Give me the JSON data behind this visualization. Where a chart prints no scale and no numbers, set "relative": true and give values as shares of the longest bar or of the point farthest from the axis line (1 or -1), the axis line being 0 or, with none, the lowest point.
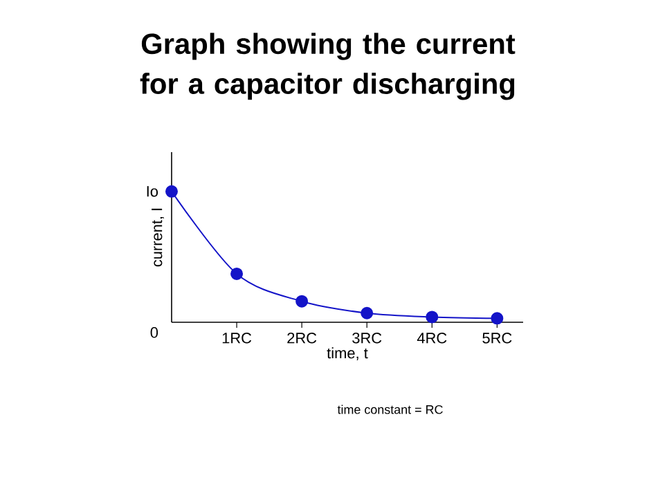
{
  "chart_data": {
    "type": "line",
    "title": "Graph showing the current for a capacitor discharging",
    "xlabel": "time, t",
    "ylabel": "current, I",
    "annotations": [
      "time constant = RC",
      {
        "text": "Io",
        "x": 0,
        "y": 1
      },
      "0"
    ],
    "relative": true,
    "x": [
      0,
      1,
      2,
      3,
      4,
      5
    ],
    "series": [
      {
        "color": "#1414c8",
        "values": [
          1,
          0.37,
          0.16,
          0.07,
          0.04,
          0.03
        ]
      }
    ],
    "xlim": [
      0,
      5.4
    ],
    "xticks": [
      {
        "value": 1,
        "label": "1RC"
      },
      {
        "value": 2,
        "label": "2RC"
      },
      {
        "value": 3,
        "label": "3RC"
      },
      {
        "value": 4,
        "label": "4RC"
      },
      {
        "value": 5,
        "label": "5RC"
      }
    ],
    "marker": "circle",
    "line_style": "solid",
    "grid": false
  }
}
